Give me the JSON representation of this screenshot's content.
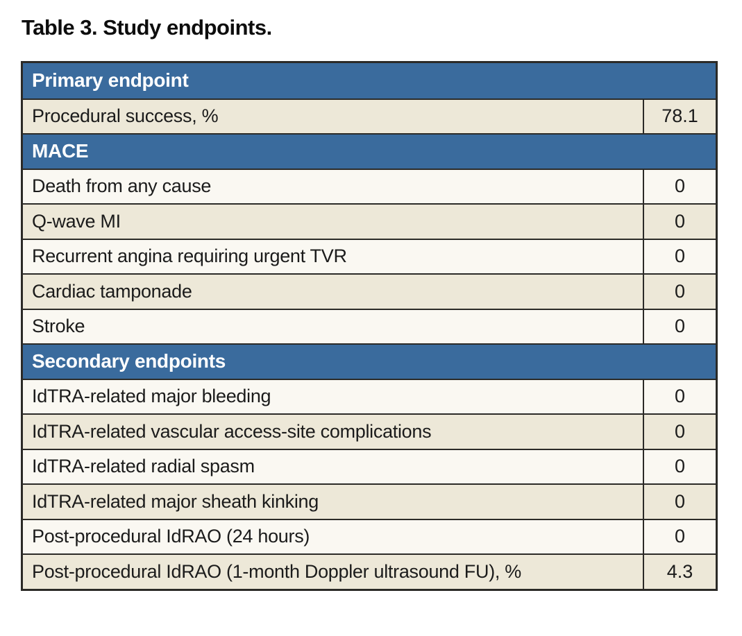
{
  "title": "Table 3. Study endpoints.",
  "table": {
    "sections": [
      {
        "header": "Primary endpoint",
        "rows": [
          {
            "label": "Procedural success, %",
            "value": "78.1",
            "shade": "beige"
          }
        ]
      },
      {
        "header": "MACE",
        "rows": [
          {
            "label": "Death from any cause",
            "value": "0",
            "shade": "white"
          },
          {
            "label": "Q-wave MI",
            "value": "0",
            "shade": "beige"
          },
          {
            "label": "Recurrent angina requiring urgent TVR",
            "value": "0",
            "shade": "white"
          },
          {
            "label": "Cardiac tamponade",
            "value": "0",
            "shade": "beige"
          },
          {
            "label": "Stroke",
            "value": "0",
            "shade": "white"
          }
        ]
      },
      {
        "header": "Secondary endpoints",
        "rows": [
          {
            "label": "IdTRA-related major bleeding",
            "value": "0",
            "shade": "white"
          },
          {
            "label": "IdTRA-related vascular access-site complications",
            "value": "0",
            "shade": "beige"
          },
          {
            "label": "IdTRA-related radial spasm",
            "value": "0",
            "shade": "white"
          },
          {
            "label": "IdTRA-related major sheath kinking",
            "value": "0",
            "shade": "beige"
          },
          {
            "label": "Post-procedural IdRAO (24 hours)",
            "value": "0",
            "shade": "white"
          },
          {
            "label": "Post-procedural IdRAO (1-month Doppler ultrasound FU), %",
            "value": "4.3",
            "shade": "beige"
          }
        ]
      }
    ]
  },
  "colors": {
    "header_bg": "#3a6b9d",
    "header_text": "#ffffff",
    "row_beige": "#ede8d8",
    "row_white": "#faf8f2",
    "border": "#2b2a27",
    "row_text": "#1b1b1b"
  }
}
